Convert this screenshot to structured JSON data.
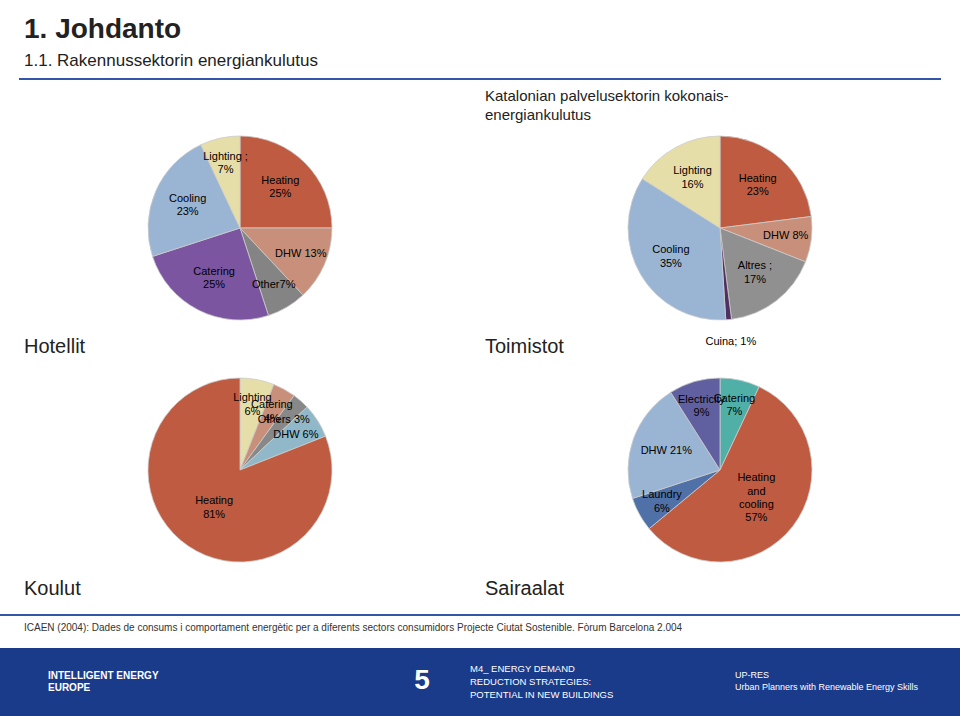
{
  "page": {
    "title": "1. Johdanto",
    "subtitle": "1.1. Rakennussektorin energiankulutus",
    "group_title": "Katalonian palvelusektorin kokonais-\nenergiankulutus",
    "footer": "ICAEN (2004): Dades de consums i comportament energètic per a diferents sectors consumidors Projecte Ciutat Sostenible. Fòrum Barcelona 2.004",
    "banner": [
      "INTELLIGENT ENERGY\nEUROPE",
      "5",
      "M4_ ENERGY DEMAND\nREDUCTION STRATEGIES:\nPOTENTIAL IN NEW BUILDINGS",
      "UP-RES\nUrban Planners with Renewable Energy Skills"
    ]
  },
  "chart_data": [
    {
      "type": "pie",
      "title": "Hotellit",
      "categories": [
        "Heating\n25%",
        "DHW 13%",
        "Other7%",
        "Catering\n25%",
        "Cooling\n23%",
        "Lighting ;\n7%"
      ],
      "values": [
        25,
        13,
        7,
        25,
        23,
        7
      ],
      "colors": [
        "#bf5b40",
        "#c8907a",
        "#848484",
        "#7b55a0",
        "#9ab4d4",
        "#e6dea8"
      ]
    },
    {
      "type": "pie",
      "title": "Toimistot",
      "categories": [
        "Heating\n23%",
        "DHW 8%",
        "Altres ;\n17%",
        "Cuina; 1%",
        "Cooling\n35%",
        "Lighting\n16%"
      ],
      "values": [
        23,
        8,
        17,
        1,
        35,
        16
      ],
      "colors": [
        "#bf5b40",
        "#c8907a",
        "#909090",
        "#503060",
        "#9ab4d4",
        "#e6dea8"
      ]
    },
    {
      "type": "pie",
      "title": "Koulut",
      "categories": [
        "Lighting\n6%",
        "Catering\n4%",
        "Others 3%",
        "DHW 6%",
        "Heating\n81%"
      ],
      "values": [
        6,
        4,
        3,
        6,
        81
      ],
      "colors": [
        "#e6dea8",
        "#c8907a",
        "#888888",
        "#90b8c8",
        "#bf5b40"
      ]
    },
    {
      "type": "pie",
      "title": "Sairaalat",
      "categories": [
        "Catering\n7%",
        "Heating\nand\ncooling\n57%",
        "Laundry\n6%",
        "DHW 21%",
        "Electricity\n9%"
      ],
      "values": [
        7,
        57,
        6,
        21,
        9
      ],
      "colors": [
        "#50b0a8",
        "#bf5b40",
        "#5070a8",
        "#9ab4d4",
        "#6060a0"
      ]
    }
  ]
}
